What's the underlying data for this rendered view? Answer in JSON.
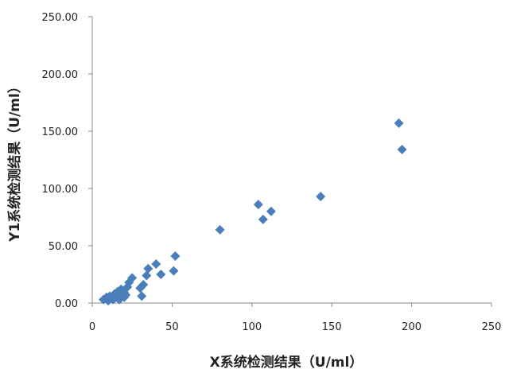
{
  "chart_data": {
    "type": "scatter",
    "title": "",
    "xlabel": "X系统检测结果（U/ml）",
    "ylabel": "Y1系统检测结果（U/ml）",
    "xlim": [
      0,
      250
    ],
    "ylim": [
      0,
      250
    ],
    "x_ticks": [
      0,
      50,
      100,
      150,
      200,
      250
    ],
    "x_tick_labels": [
      "0",
      "50",
      "100",
      "150",
      "200",
      "250"
    ],
    "y_ticks": [
      0,
      50,
      100,
      150,
      200,
      250
    ],
    "y_tick_labels": [
      "0.00",
      "50.00",
      "100.00",
      "150.00",
      "200.00",
      "250.00"
    ],
    "grid": false,
    "legend": "none",
    "marker": "diamond",
    "marker_color": "#4a7ebb",
    "series": [
      {
        "points": [
          [
            7,
            3
          ],
          [
            9,
            5
          ],
          [
            10,
            2
          ],
          [
            11,
            6
          ],
          [
            12,
            4
          ],
          [
            13,
            3
          ],
          [
            14,
            8
          ],
          [
            15,
            5
          ],
          [
            16,
            10
          ],
          [
            17,
            6
          ],
          [
            17,
            3
          ],
          [
            18,
            12
          ],
          [
            19,
            8
          ],
          [
            20,
            5
          ],
          [
            20,
            9
          ],
          [
            21,
            7
          ],
          [
            22,
            14
          ],
          [
            23,
            18
          ],
          [
            25,
            22
          ],
          [
            30,
            13
          ],
          [
            31,
            6
          ],
          [
            32,
            16
          ],
          [
            34,
            24
          ],
          [
            35,
            30
          ],
          [
            40,
            34
          ],
          [
            43,
            25
          ],
          [
            51,
            28
          ],
          [
            52,
            41
          ],
          [
            80,
            64
          ],
          [
            104,
            86
          ],
          [
            107,
            73
          ],
          [
            112,
            80
          ],
          [
            143,
            93
          ],
          [
            192,
            157
          ],
          [
            194,
            134
          ]
        ]
      }
    ]
  }
}
